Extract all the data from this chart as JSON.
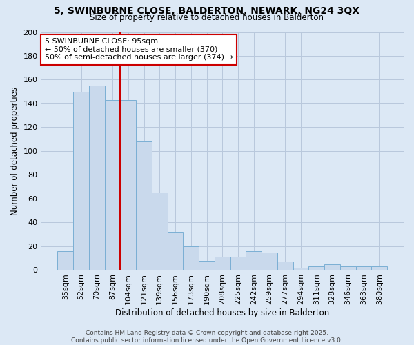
{
  "title": "5, SWINBURNE CLOSE, BALDERTON, NEWARK, NG24 3QX",
  "subtitle": "Size of property relative to detached houses in Balderton",
  "xlabel": "Distribution of detached houses by size in Balderton",
  "ylabel": "Number of detached properties",
  "categories": [
    "35sqm",
    "52sqm",
    "70sqm",
    "87sqm",
    "104sqm",
    "121sqm",
    "139sqm",
    "156sqm",
    "173sqm",
    "190sqm",
    "208sqm",
    "225sqm",
    "242sqm",
    "259sqm",
    "277sqm",
    "294sqm",
    "311sqm",
    "328sqm",
    "346sqm",
    "363sqm",
    "380sqm"
  ],
  "values": [
    16,
    150,
    155,
    143,
    143,
    108,
    65,
    32,
    20,
    8,
    11,
    11,
    16,
    15,
    7,
    2,
    3,
    5,
    3,
    3,
    3
  ],
  "bar_color": "#c9d9ec",
  "bar_edge_color": "#7bafd4",
  "vline_x": 3.5,
  "vline_color": "#cc0000",
  "annotation_title": "5 SWINBURNE CLOSE: 95sqm",
  "annotation_line1": "← 50% of detached houses are smaller (370)",
  "annotation_line2": "50% of semi-detached houses are larger (374) →",
  "annotation_box_color": "#ffffff",
  "annotation_box_edge": "#cc0000",
  "footer1": "Contains HM Land Registry data © Crown copyright and database right 2025.",
  "footer2": "Contains public sector information licensed under the Open Government Licence v3.0.",
  "ylim": [
    0,
    200
  ],
  "yticks": [
    0,
    20,
    40,
    60,
    80,
    100,
    120,
    140,
    160,
    180,
    200
  ],
  "grid_color": "#b8c8dc",
  "background_color": "#dce8f5",
  "fig_background": "#dce8f5"
}
